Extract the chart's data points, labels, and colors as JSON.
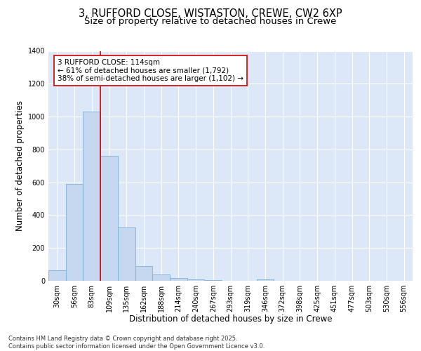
{
  "title_line1": "3, RUFFORD CLOSE, WISTASTON, CREWE, CW2 6XP",
  "title_line2": "Size of property relative to detached houses in Crewe",
  "xlabel": "Distribution of detached houses by size in Crewe",
  "ylabel": "Number of detached properties",
  "categories": [
    "30sqm",
    "56sqm",
    "83sqm",
    "109sqm",
    "135sqm",
    "162sqm",
    "188sqm",
    "214sqm",
    "240sqm",
    "267sqm",
    "293sqm",
    "319sqm",
    "346sqm",
    "372sqm",
    "398sqm",
    "425sqm",
    "451sqm",
    "477sqm",
    "503sqm",
    "530sqm",
    "556sqm"
  ],
  "values": [
    65,
    590,
    1030,
    760,
    325,
    90,
    40,
    18,
    8,
    3,
    1,
    0,
    8,
    0,
    0,
    0,
    0,
    0,
    0,
    0,
    0
  ],
  "bar_color": "#c5d8f0",
  "bar_edgecolor": "#7ab0d8",
  "vline_color": "#cc0000",
  "annotation_text": "3 RUFFORD CLOSE: 114sqm\n← 61% of detached houses are smaller (1,792)\n38% of semi-detached houses are larger (1,102) →",
  "annotation_box_color": "#ffffff",
  "annotation_box_edgecolor": "#cc0000",
  "ylim": [
    0,
    1400
  ],
  "yticks": [
    0,
    200,
    400,
    600,
    800,
    1000,
    1200,
    1400
  ],
  "background_color": "#dce8f8",
  "footer_text": "Contains HM Land Registry data © Crown copyright and database right 2025.\nContains public sector information licensed under the Open Government Licence v3.0.",
  "grid_color": "#ffffff",
  "title_fontsize": 10.5,
  "subtitle_fontsize": 9.5,
  "tick_fontsize": 7,
  "axis_label_fontsize": 8.5,
  "annotation_fontsize": 7.5,
  "footer_fontsize": 6.0
}
